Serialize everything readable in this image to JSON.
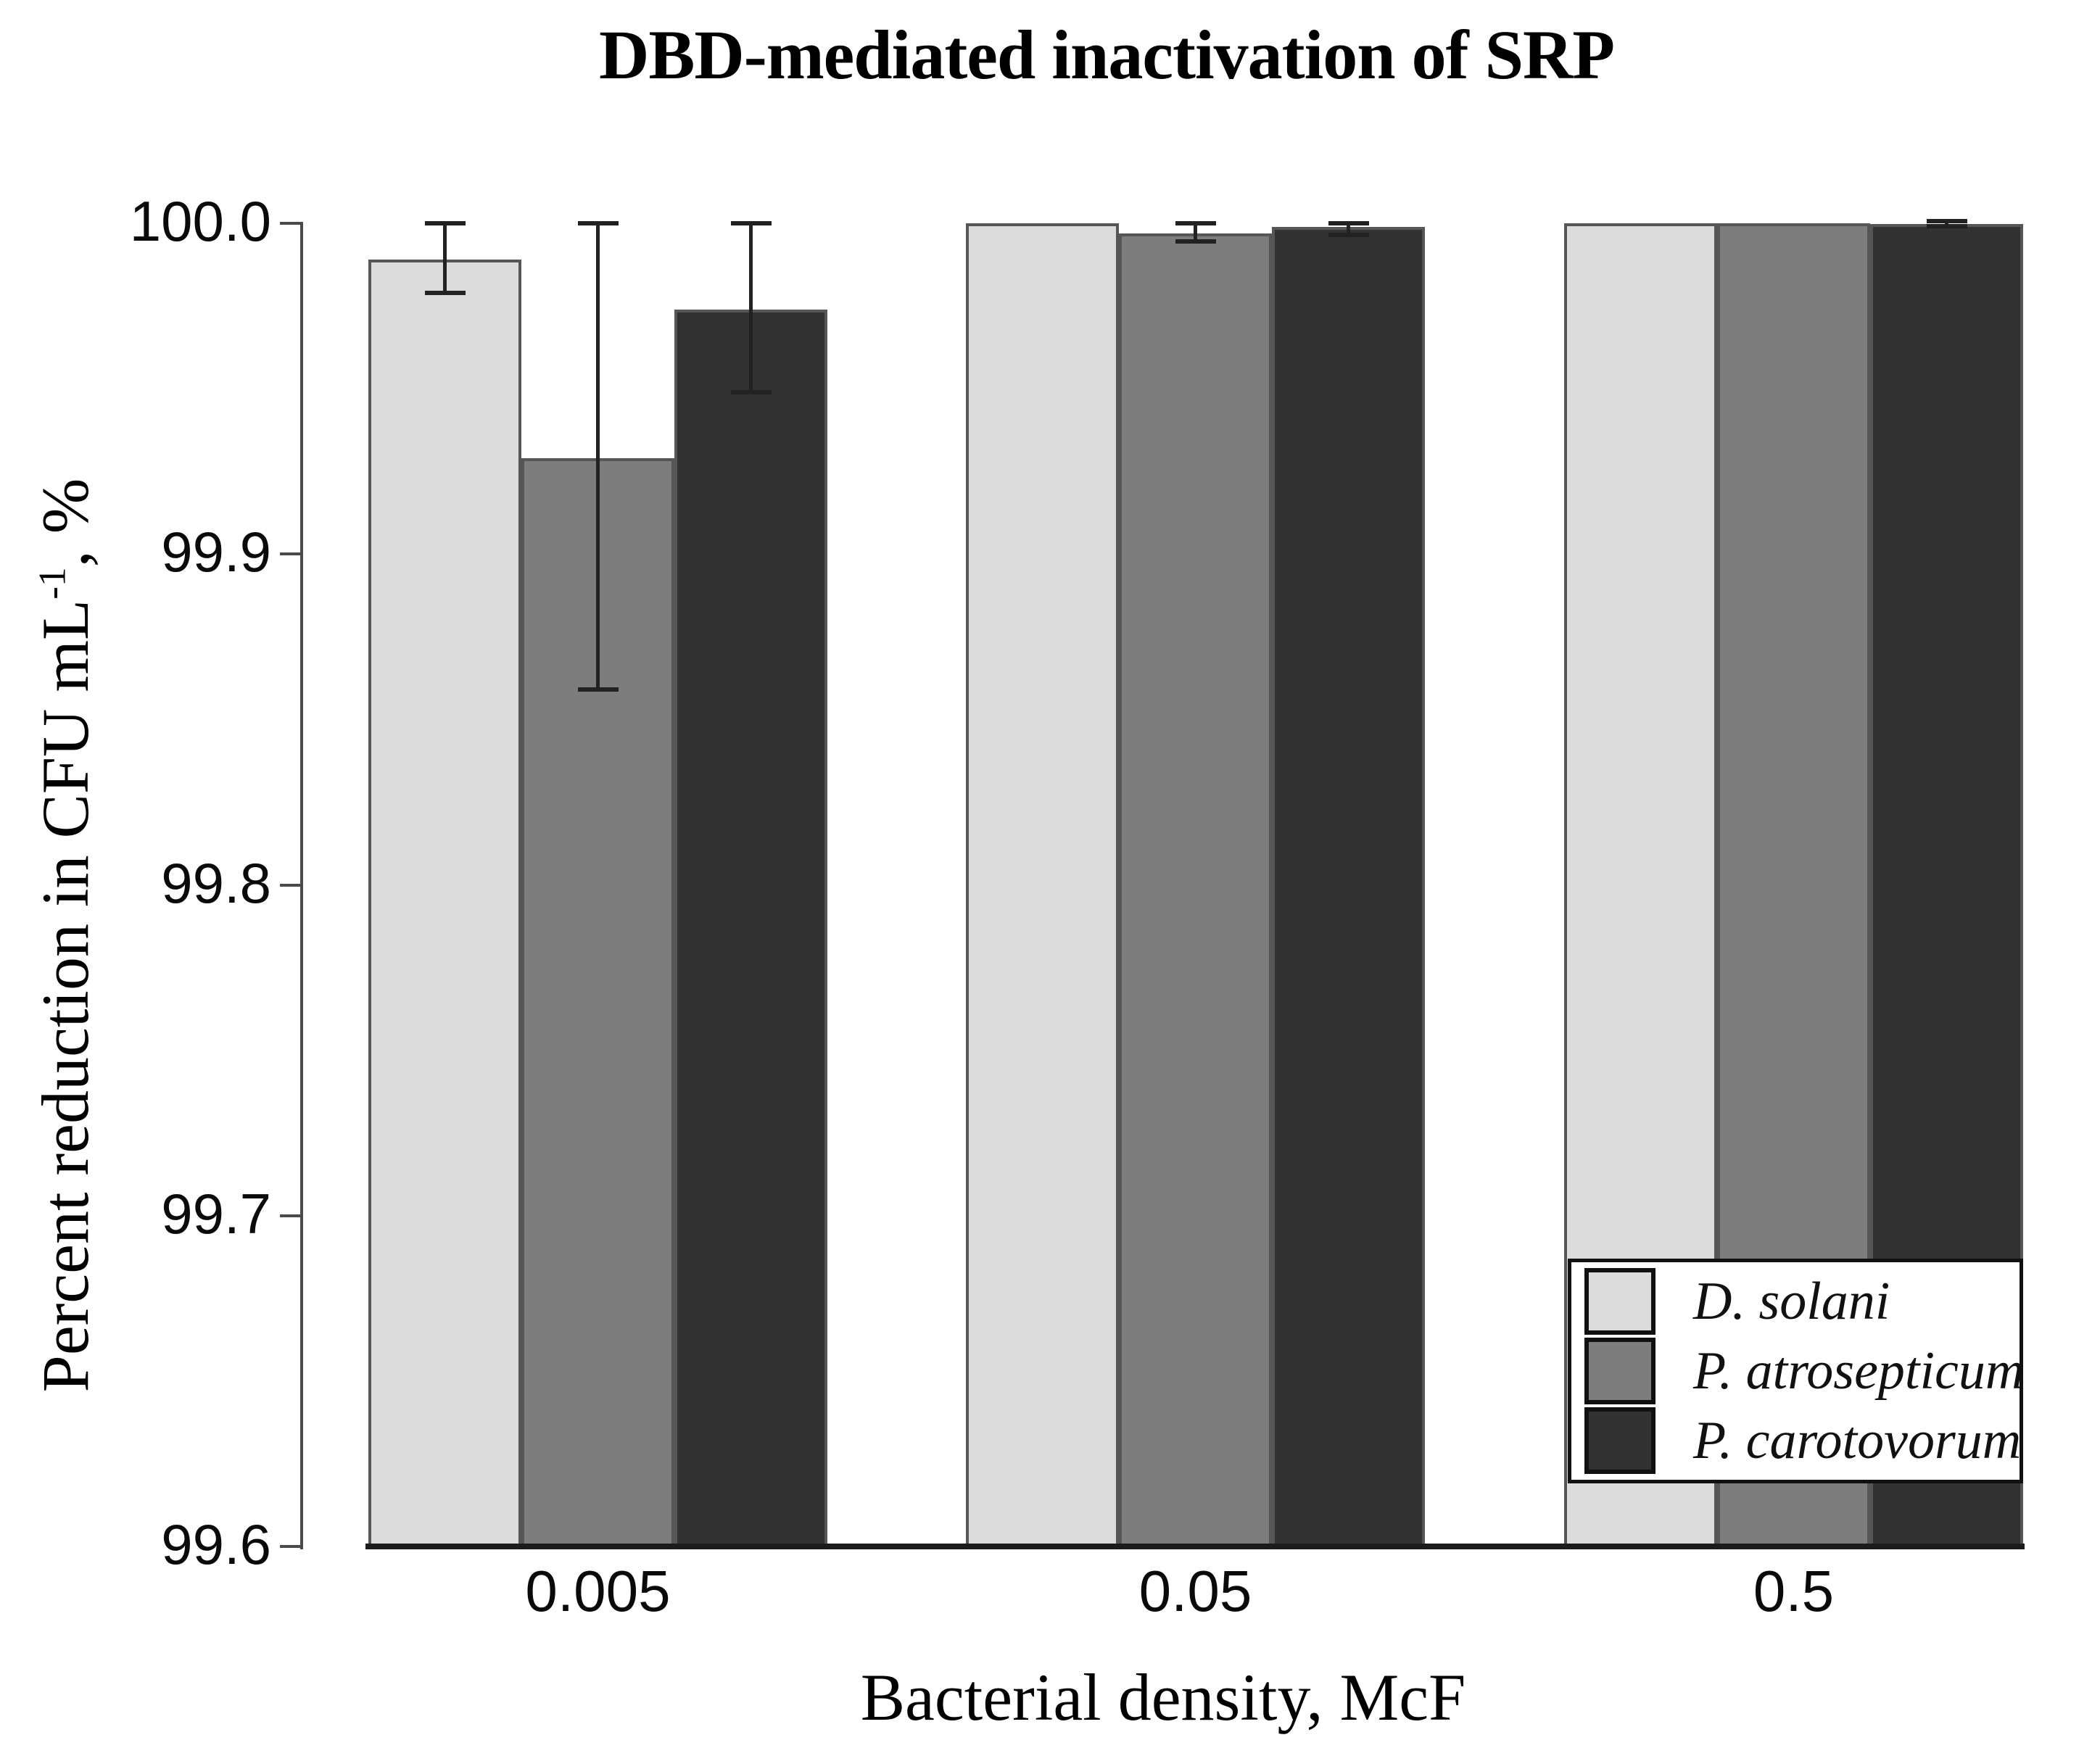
{
  "title": "DBD-mediated inactivation of SRP",
  "axes": {
    "x_label": "Bacterial density, McF",
    "y_label_main": "Percent reduction in CFU mL",
    "y_label_sup": "-1",
    "y_label_suffix": ", %"
  },
  "chart_data": {
    "type": "bar",
    "title": "DBD-mediated inactivation of SRP",
    "xlabel": "Bacterial density, McF",
    "ylabel": "Percent reduction in CFU mL^-1, %",
    "categories": [
      "0.005",
      "0.05",
      "0.5"
    ],
    "ylim": [
      99.6,
      100.0
    ],
    "yticks": [
      100.0,
      99.9,
      99.8,
      99.7,
      99.6
    ],
    "ytick_labels": [
      "100.0",
      "99.9",
      "99.8",
      "99.7",
      "99.6"
    ],
    "grid": false,
    "legend_position": "inside-bottom-right",
    "bar_outline_color": "#565656",
    "error_bar_color": "#222222",
    "axis_color": "#4a4a4a",
    "baseline_color": "#1c1c1c",
    "series": [
      {
        "name": "D. solani",
        "color": "#dcdcdc",
        "values": [
          99.989,
          100.0,
          100.0
        ],
        "error_low": [
          99.979,
          null,
          null
        ],
        "error_high": [
          100.0,
          null,
          null
        ]
      },
      {
        "name": "P. atrosepticum",
        "color": "#7d7d7d",
        "values": [
          99.929,
          99.997,
          100.0
        ],
        "error_low": [
          99.859,
          99.9945,
          null
        ],
        "error_high": [
          100.0,
          100.0,
          null
        ]
      },
      {
        "name": "P. carotovorum",
        "color": "#323232",
        "values": [
          99.974,
          99.999,
          99.9999
        ],
        "error_low": [
          99.949,
          99.9965,
          99.9991
        ],
        "error_high": [
          100.0,
          100.0,
          100.0007
        ]
      }
    ]
  }
}
